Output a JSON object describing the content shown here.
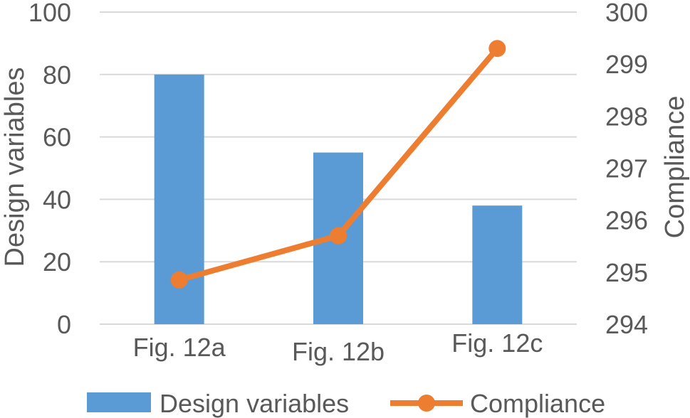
{
  "chart_data": {
    "type": "bar+line",
    "categories": [
      "Fig. 12a",
      "Fig. 12b",
      "Fig. 12c"
    ],
    "series": [
      {
        "name": "Design variables",
        "type": "bar",
        "axis": "left",
        "values": [
          80,
          55,
          38
        ],
        "color": "#5B9BD5"
      },
      {
        "name": "Compliance",
        "type": "line",
        "axis": "right",
        "values": [
          294.85,
          295.7,
          299.3
        ],
        "color": "#ED7D31"
      }
    ],
    "ylabel": "Design variables",
    "y2label": "Compliance",
    "ylim": [
      0,
      100
    ],
    "y2lim": [
      294,
      300
    ],
    "yticks": [
      "0",
      "20",
      "40",
      "60",
      "80",
      "100"
    ],
    "y2ticks": [
      "294",
      "295",
      "296",
      "297",
      "298",
      "299",
      "300"
    ],
    "grid": true,
    "legend": "bottom",
    "colors": {
      "grid": "#D9D9D9",
      "text": "#595959"
    }
  }
}
